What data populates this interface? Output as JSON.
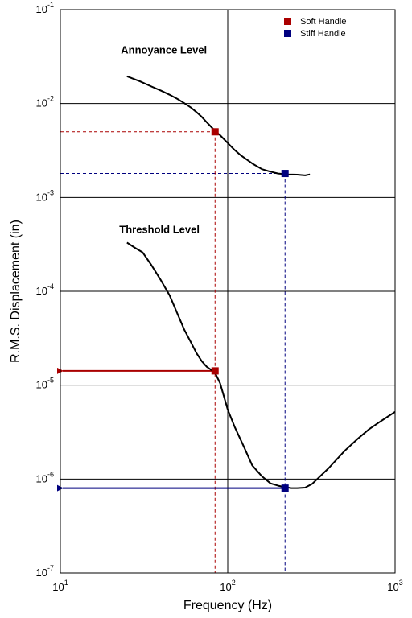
{
  "chart_data": {
    "type": "line",
    "xscale": "log",
    "yscale": "log",
    "xlim": [
      10,
      1000
    ],
    "ylim": [
      1e-07,
      0.1
    ],
    "xlabel": "Frequency (Hz)",
    "ylabel": "R.M.S. Displacement (in)",
    "grid": true,
    "x_ticks": [
      {
        "value": 10,
        "base": "10",
        "exp": "1"
      },
      {
        "value": 100,
        "base": "10",
        "exp": "2"
      },
      {
        "value": 1000,
        "base": "10",
        "exp": "3"
      }
    ],
    "y_ticks": [
      {
        "value": 0.1,
        "base": "10",
        "exp": "-1"
      },
      {
        "value": 0.01,
        "base": "10",
        "exp": "-2"
      },
      {
        "value": 0.001,
        "base": "10",
        "exp": "-3"
      },
      {
        "value": 0.0001,
        "base": "10",
        "exp": "-4"
      },
      {
        "value": 1e-05,
        "base": "10",
        "exp": "-5"
      },
      {
        "value": 1e-06,
        "base": "10",
        "exp": "-6"
      },
      {
        "value": 1e-07,
        "base": "10",
        "exp": "-7"
      }
    ],
    "series": [
      {
        "label": "Annoyance Level",
        "color": "#000000",
        "x": [
          25,
          30,
          35,
          40,
          45,
          50,
          55,
          60,
          65,
          70,
          75,
          80,
          85,
          90,
          100,
          110,
          120,
          140,
          160,
          180,
          200,
          230,
          260,
          290,
          310
        ],
        "y": [
          0.0195,
          0.0172,
          0.0152,
          0.0137,
          0.0124,
          0.0112,
          0.0101,
          0.0091,
          0.0081,
          0.0072,
          0.0063,
          0.0056,
          0.005,
          0.0046,
          0.0038,
          0.0032,
          0.0028,
          0.0023,
          0.002,
          0.00188,
          0.0018,
          0.00176,
          0.00175,
          0.00172,
          0.00176
        ]
      },
      {
        "label": "Threshold Level",
        "color": "#000000",
        "x": [
          25,
          28,
          31,
          35,
          40,
          45,
          50,
          55,
          60,
          65,
          70,
          75,
          80,
          85,
          90,
          100,
          110,
          125,
          140,
          160,
          180,
          200,
          220,
          240,
          260,
          290,
          320,
          400,
          500,
          600,
          700,
          800,
          900,
          1000
        ],
        "y": [
          0.00033,
          0.00029,
          0.00026,
          0.00019,
          0.00013,
          9e-05,
          5.8e-05,
          3.9e-05,
          2.9e-05,
          2.2e-05,
          1.8e-05,
          1.57e-05,
          1.45e-05,
          1.3e-05,
          1.05e-05,
          5.5e-06,
          3.6e-06,
          2.2e-06,
          1.4e-06,
          1.07e-06,
          9e-07,
          8.5e-07,
          8.2e-07,
          8e-07,
          8e-07,
          8.1e-07,
          8.9e-07,
          1.3e-06,
          2e-06,
          2.7e-06,
          3.4e-06,
          4e-06,
          4.6e-06,
          5.2e-06
        ]
      }
    ],
    "annotations": [
      {
        "text": "Annoyance Level",
        "x": 23,
        "y": 0.034
      },
      {
        "text": "Threshold Level",
        "x": 22.5,
        "y": 0.00042
      }
    ],
    "markers": [
      {
        "series": "Soft Handle",
        "color": "#aa0000",
        "x": 84,
        "y": 0.005
      },
      {
        "series": "Stiff Handle",
        "color": "#00007f",
        "x": 220,
        "y": 0.0018
      },
      {
        "series": "Soft Handle",
        "color": "#aa0000",
        "x": 84,
        "y": 1.42e-05
      },
      {
        "series": "Stiff Handle",
        "color": "#00007f",
        "x": 220,
        "y": 8e-07
      }
    ],
    "reference_lines": [
      {
        "color": "#aa0000",
        "style": "dashed",
        "kind": "horizontal-to-axis",
        "x": 84,
        "y": 0.005
      },
      {
        "color": "#00007f",
        "style": "dashed",
        "kind": "horizontal-to-axis",
        "x": 220,
        "y": 0.0018
      },
      {
        "color": "#aa0000",
        "style": "dashed",
        "kind": "vertical-to-axis",
        "x": 84,
        "y": 0.005
      },
      {
        "color": "#00007f",
        "style": "dashed",
        "kind": "vertical-to-axis",
        "x": 220,
        "y": 0.0018
      },
      {
        "color": "#aa0000",
        "style": "arrow",
        "kind": "arrow-to-axis",
        "x": 84,
        "y": 1.42e-05
      },
      {
        "color": "#00007f",
        "style": "arrow",
        "kind": "arrow-to-axis",
        "x": 220,
        "y": 8e-07
      }
    ],
    "legend": {
      "position": "top-right",
      "items": [
        {
          "label": "Soft Handle",
          "color": "#aa0000"
        },
        {
          "label": "Stiff Handle",
          "color": "#00007f"
        }
      ]
    }
  }
}
